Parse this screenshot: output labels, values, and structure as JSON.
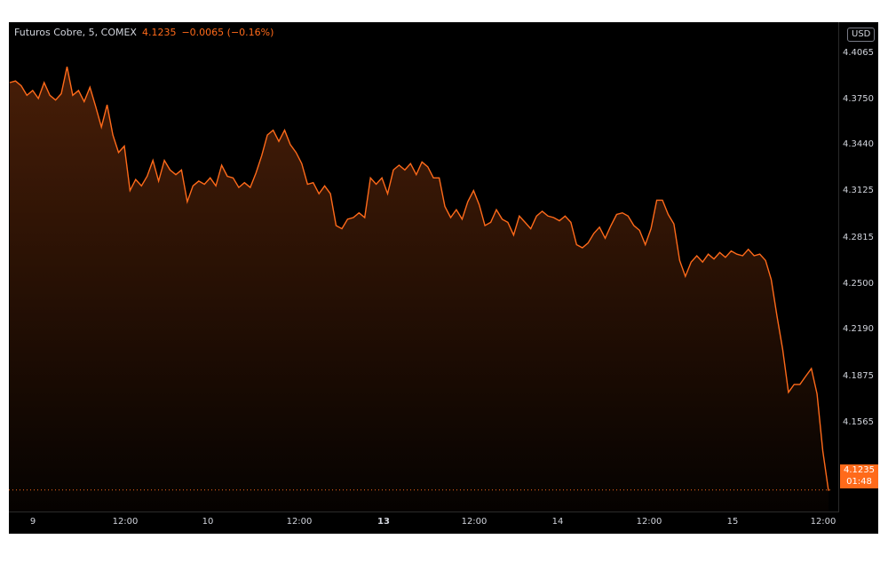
{
  "header": {
    "symbol": "Futuros Cobre, 5, COMEX",
    "last_price": "4.1235",
    "change": "−0.0065 (−0.16%)"
  },
  "currency": "USD",
  "price_axis": [
    "4.4065",
    "4.3750",
    "4.3440",
    "4.3125",
    "4.2815",
    "4.2500",
    "4.2190",
    "4.1875",
    "4.1565"
  ],
  "time_axis": [
    {
      "label": "9",
      "bold": false
    },
    {
      "label": "12:00",
      "bold": false
    },
    {
      "label": "10",
      "bold": false
    },
    {
      "label": "12:00",
      "bold": false
    },
    {
      "label": "13",
      "bold": true
    },
    {
      "label": "12:00",
      "bold": false
    },
    {
      "label": "14",
      "bold": false
    },
    {
      "label": "12:00",
      "bold": false
    },
    {
      "label": "15",
      "bold": false
    },
    {
      "label": "12:00",
      "bold": false
    }
  ],
  "last_price_tag": {
    "price": "4.1235",
    "countdown": "01:48"
  },
  "colors": {
    "line": "#ff6a1a",
    "background": "#000000",
    "text": "#d1d4dc"
  },
  "chart_data": {
    "type": "area",
    "series": [
      {
        "values": [
          4.38,
          4.381,
          4.378,
          4.372,
          4.375,
          4.37,
          4.38,
          4.372,
          4.369,
          4.373,
          4.39,
          4.372,
          4.375,
          4.368,
          4.377,
          4.365,
          4.352,
          4.366,
          4.347,
          4.336,
          4.34,
          4.312,
          4.319,
          4.315,
          4.321,
          4.331,
          4.318,
          4.331,
          4.325,
          4.322,
          4.325,
          4.305,
          4.315,
          4.318,
          4.316,
          4.32,
          4.315,
          4.328,
          4.321,
          4.32,
          4.314,
          4.317,
          4.314,
          4.323,
          4.334,
          4.347,
          4.35,
          4.343,
          4.35,
          4.341,
          4.336,
          4.329,
          4.316,
          4.317,
          4.31,
          4.315,
          4.31,
          4.29,
          4.288,
          4.294,
          4.295,
          4.298,
          4.295,
          4.32,
          4.316,
          4.32,
          4.31,
          4.325,
          4.328,
          4.325,
          4.329,
          4.322,
          4.33,
          4.327,
          4.32,
          4.32,
          4.302,
          4.295,
          4.3,
          4.294,
          4.305,
          4.312,
          4.303,
          4.29,
          4.292,
          4.3,
          4.294,
          4.292,
          4.284,
          4.296,
          4.292,
          4.288,
          4.296,
          4.299,
          4.296,
          4.295,
          4.293,
          4.296,
          4.292,
          4.278,
          4.276,
          4.279,
          4.285,
          4.289,
          4.282,
          4.29,
          4.297,
          4.298,
          4.296,
          4.29,
          4.287,
          4.278,
          4.288,
          4.306,
          4.306,
          4.297,
          4.291,
          4.268,
          4.258,
          4.267,
          4.271,
          4.267,
          4.272,
          4.269,
          4.273,
          4.27,
          4.274,
          4.272,
          4.271,
          4.275,
          4.271,
          4.272,
          4.268,
          4.256,
          4.233,
          4.212,
          4.185,
          4.19,
          4.19,
          4.195,
          4.2,
          4.184,
          4.148,
          4.123
        ]
      }
    ],
    "x_labels": [
      "9",
      "12:00",
      "10",
      "12:00",
      "13",
      "12:00",
      "14",
      "12:00",
      "15",
      "12:00"
    ],
    "ylim": [
      4.11,
      4.418
    ],
    "grid": false,
    "last_value": 4.1235
  }
}
